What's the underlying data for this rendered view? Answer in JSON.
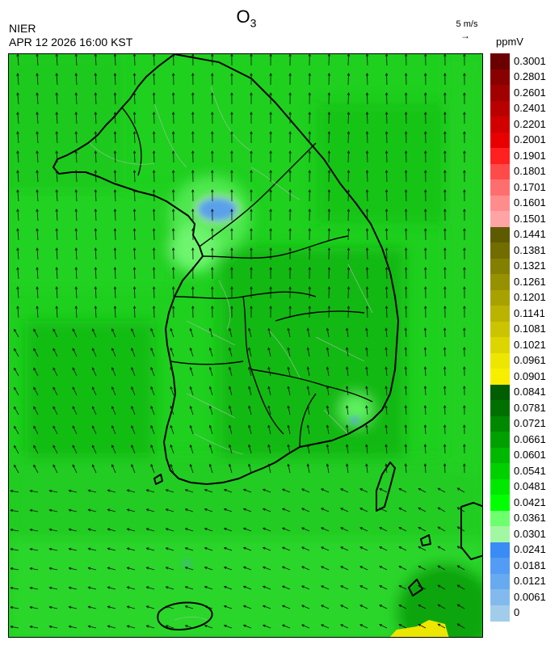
{
  "header": {
    "species_main": "O",
    "species_sub": "3",
    "agency": "NIER",
    "datetime": "APR 12 2026 16:00 KST",
    "wind_reference": "5 m/s",
    "unit": "ppmV"
  },
  "colorbar": {
    "labels": [
      "0.3001",
      "0.2801",
      "0.2601",
      "0.2401",
      "0.2201",
      "0.2001",
      "0.1901",
      "0.1801",
      "0.1701",
      "0.1601",
      "0.1501",
      "0.1441",
      "0.1381",
      "0.1321",
      "0.1261",
      "0.1201",
      "0.1141",
      "0.1081",
      "0.1021",
      "0.0961",
      "0.0901",
      "0.0841",
      "0.0781",
      "0.0721",
      "0.0661",
      "0.0601",
      "0.0541",
      "0.0481",
      "0.0421",
      "0.0361",
      "0.0301",
      "0.0241",
      "0.0181",
      "0.0121",
      "0.0061",
      "0"
    ],
    "colors": [
      "#6b0000",
      "#880000",
      "#a00000",
      "#b80000",
      "#d00000",
      "#e80000",
      "#ff2020",
      "#ff4a4a",
      "#ff6e6e",
      "#ff8c8c",
      "#ffa4a4",
      "#5e5a00",
      "#716d00",
      "#837f00",
      "#969100",
      "#a8a200",
      "#bab300",
      "#ccc400",
      "#ddd500",
      "#ece600",
      "#f7ee00",
      "#005e00",
      "#007000",
      "#008800",
      "#00a000",
      "#00b800",
      "#00d000",
      "#00e800",
      "#00ff00",
      "#6dff6d",
      "#a2f7a2",
      "#3a8cf5",
      "#529cf5",
      "#68aaf0",
      "#83baee",
      "#a2cdea"
    ]
  },
  "map": {
    "region": "Korean Peninsula",
    "background_color": "#1fd01f",
    "low_ozone_areas": [
      "Seoul metropolitan area",
      "Busan",
      "Jeju"
    ],
    "elevated_ozone_area": "southeast corner near Tsushima"
  },
  "colors": {
    "coastline": "#000000",
    "admin_border": "#c0c0c0",
    "wind_arrow": "#111111"
  }
}
